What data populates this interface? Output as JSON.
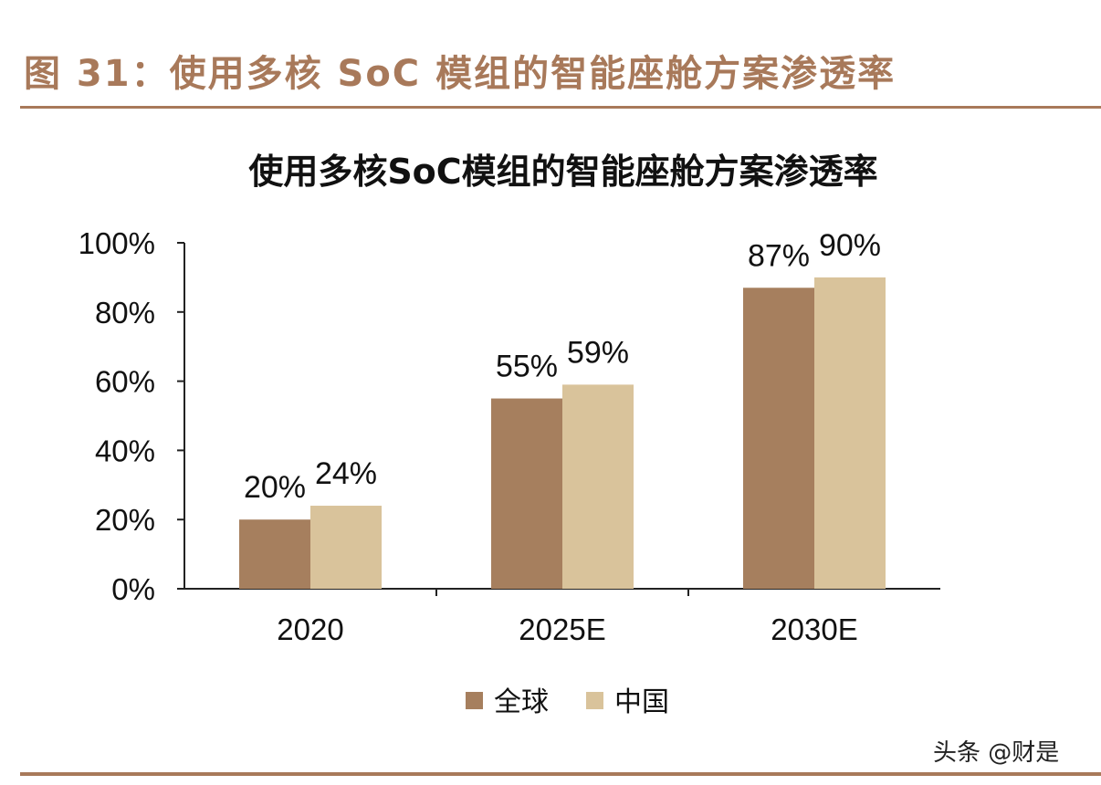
{
  "figure_label": "图 31：使用多核 SoC 模组的智能座舱方案渗透率",
  "watermark": "头条 @财是",
  "colors": {
    "global": "#a67f5e",
    "china": "#d9c39b",
    "accent": "#a8795a"
  },
  "chart_data": {
    "type": "bar",
    "title": "使用多核SoC模组的智能座舱方案渗透率",
    "categories": [
      "2020",
      "2025E",
      "2030E"
    ],
    "series": [
      {
        "name": "全球",
        "values": [
          20,
          55,
          87
        ],
        "labels": [
          "20%",
          "55%",
          "87%"
        ],
        "color": "#a67f5e"
      },
      {
        "name": "中国",
        "values": [
          24,
          59,
          90
        ],
        "labels": [
          "24%",
          "59%",
          "90%"
        ],
        "color": "#d9c39b"
      }
    ],
    "yticks": [
      "0%",
      "20%",
      "40%",
      "60%",
      "80%",
      "100%"
    ],
    "ylim": [
      0,
      100
    ],
    "grid": false,
    "legend": "bottom"
  }
}
